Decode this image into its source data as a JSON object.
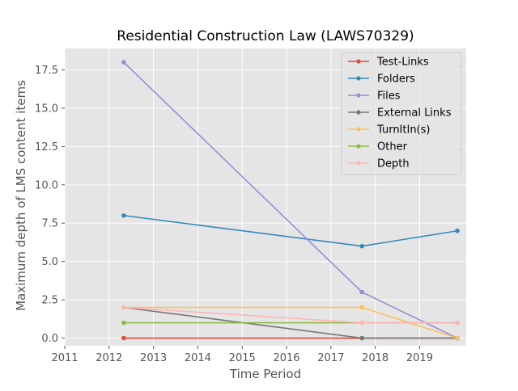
{
  "chart_data": {
    "type": "line",
    "title": "Residential Construction Law (LAWS70329)",
    "xlabel": "Time Period",
    "ylabel": "Maximum depth of LMS content items",
    "xlim": [
      2011.0,
      2020.05
    ],
    "ylim": [
      -0.5,
      18.9
    ],
    "x_ticks": [
      2011,
      2012,
      2013,
      2014,
      2015,
      2016,
      2017,
      2018,
      2019
    ],
    "x_tick_labels": [
      "2011",
      "2012",
      "2013",
      "2014",
      "2015",
      "2016",
      "2017",
      "2018",
      "2019"
    ],
    "y_ticks": [
      0,
      2.5,
      5,
      7.5,
      10,
      12.5,
      15,
      17.5
    ],
    "y_tick_labels": [
      "0.0",
      "2.5",
      "5.0",
      "7.5",
      "10.0",
      "12.5",
      "15.0",
      "17.5"
    ],
    "x": [
      2012.33,
      2017.7,
      2019.85
    ],
    "grid": true,
    "legend_position": "top-right",
    "series": [
      {
        "name": "Test-Links",
        "color": "#e24a33",
        "values": [
          0,
          0,
          0
        ]
      },
      {
        "name": "Folders",
        "color": "#348abd",
        "values": [
          8,
          6,
          7
        ]
      },
      {
        "name": "Files",
        "color": "#988ed5",
        "values": [
          18,
          3,
          0
        ]
      },
      {
        "name": "External Links",
        "color": "#777777",
        "values": [
          2,
          0,
          0
        ]
      },
      {
        "name": "TurnItIn(s)",
        "color": "#fbc15e",
        "values": [
          2,
          2,
          0
        ]
      },
      {
        "name": "Other",
        "color": "#8eba42",
        "values": [
          1,
          1,
          1
        ]
      },
      {
        "name": "Depth",
        "color": "#ffb5b8",
        "values": [
          2,
          1,
          1
        ]
      }
    ]
  }
}
